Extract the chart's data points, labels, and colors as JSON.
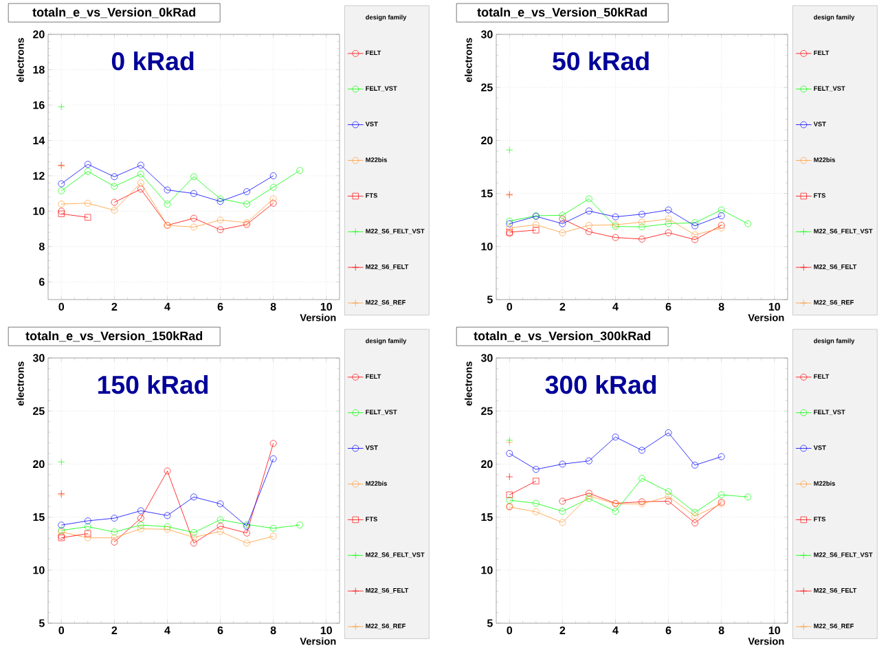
{
  "chart_data": [
    {
      "type": "line",
      "title": "totaln_e_vs_Version_0kRad",
      "annotations": [
        "0 kRad"
      ],
      "xlabel": "Version",
      "ylabel": "electrons",
      "legend_title": "design family",
      "legend": "right",
      "grid": true,
      "x": [
        0,
        1,
        2,
        3,
        4,
        5,
        6,
        7,
        8,
        9
      ],
      "xlim": [
        -0.5,
        10.5
      ],
      "xticks": [
        0,
        2,
        4,
        6,
        8,
        10
      ],
      "ylim": [
        5,
        20
      ],
      "yticks": [
        6,
        8,
        10,
        12,
        14,
        16,
        18,
        20
      ],
      "series": [
        {
          "name": "FELT",
          "color": "#ff0000",
          "marker": "circle",
          "values": [
            10.0,
            null,
            10.5,
            11.25,
            9.2,
            9.6,
            8.95,
            9.25,
            10.45,
            null
          ]
        },
        {
          "name": "FELT_VST",
          "color": "#00ff00",
          "marker": "circle",
          "values": [
            11.15,
            12.25,
            11.4,
            12.1,
            10.4,
            11.95,
            10.7,
            10.4,
            11.35,
            12.3
          ]
        },
        {
          "name": "VST",
          "color": "#0000ff",
          "marker": "circle",
          "values": [
            11.55,
            12.65,
            11.95,
            12.6,
            11.2,
            11.0,
            10.55,
            11.1,
            12.0,
            null
          ]
        },
        {
          "name": "M22bis",
          "color": "#ff9933",
          "marker": "circle",
          "values": [
            10.4,
            10.45,
            10.05,
            11.6,
            9.2,
            9.1,
            9.5,
            9.35,
            10.7,
            null
          ]
        },
        {
          "name": "FTS",
          "color": "#ff0000",
          "marker": "square",
          "values": [
            9.85,
            9.65,
            null,
            null,
            null,
            null,
            null,
            null,
            null,
            null
          ]
        },
        {
          "name": "M22_S6_FELT_VST",
          "color": "#00ff00",
          "marker": "cross",
          "values": [
            15.9,
            null,
            null,
            null,
            null,
            null,
            null,
            null,
            null,
            null
          ]
        },
        {
          "name": "M22_S6_FELT",
          "color": "#ff0000",
          "marker": "cross",
          "values": [
            12.6,
            null,
            null,
            null,
            null,
            null,
            null,
            null,
            null,
            null
          ]
        },
        {
          "name": "M22_S6_REF",
          "color": "#ff9933",
          "marker": "cross",
          "values": [
            12.55,
            null,
            null,
            null,
            null,
            null,
            null,
            null,
            null,
            null
          ]
        }
      ]
    },
    {
      "type": "line",
      "title": "totaln_e_vs_Version_50kRad",
      "annotations": [
        "50 kRad"
      ],
      "xlabel": "Version",
      "ylabel": "electrons",
      "legend_title": "design family",
      "legend": "right",
      "grid": true,
      "x": [
        0,
        1,
        2,
        3,
        4,
        5,
        6,
        7,
        8,
        9
      ],
      "xlim": [
        -0.5,
        10.5
      ],
      "xticks": [
        0,
        2,
        4,
        6,
        8,
        10
      ],
      "ylim": [
        5,
        30
      ],
      "yticks": [
        5,
        10,
        15,
        20,
        25,
        30
      ],
      "series": [
        {
          "name": "FELT",
          "color": "#ff0000",
          "marker": "circle",
          "values": [
            11.25,
            null,
            12.6,
            11.4,
            10.85,
            10.7,
            11.3,
            10.65,
            12.0,
            null
          ]
        },
        {
          "name": "FELT_VST",
          "color": "#00ff00",
          "marker": "circle",
          "values": [
            12.4,
            12.9,
            12.95,
            14.5,
            11.9,
            11.85,
            12.15,
            12.25,
            13.45,
            12.15
          ]
        },
        {
          "name": "VST",
          "color": "#0000ff",
          "marker": "circle",
          "values": [
            12.15,
            12.85,
            12.15,
            13.35,
            12.8,
            13.05,
            13.45,
            11.95,
            12.9,
            null
          ]
        },
        {
          "name": "M22bis",
          "color": "#ff9933",
          "marker": "circle",
          "values": [
            11.75,
            12.05,
            11.3,
            12.0,
            12.05,
            12.3,
            12.6,
            11.1,
            11.75,
            null
          ]
        },
        {
          "name": "FTS",
          "color": "#ff0000",
          "marker": "square",
          "values": [
            11.35,
            11.55,
            null,
            null,
            null,
            null,
            null,
            null,
            null,
            null
          ]
        },
        {
          "name": "M22_S6_FELT_VST",
          "color": "#00ff00",
          "marker": "cross",
          "values": [
            19.1,
            null,
            null,
            null,
            null,
            null,
            null,
            null,
            null,
            null
          ]
        },
        {
          "name": "M22_S6_FELT",
          "color": "#ff0000",
          "marker": "cross",
          "values": [
            14.9,
            null,
            null,
            null,
            null,
            null,
            null,
            null,
            null,
            null
          ]
        },
        {
          "name": "M22_S6_REF",
          "color": "#ff9933",
          "marker": "cross",
          "values": [
            14.85,
            null,
            null,
            null,
            null,
            null,
            null,
            null,
            null,
            null
          ]
        }
      ]
    },
    {
      "type": "line",
      "title": "totaln_e_vs_Version_150kRad",
      "annotations": [
        "150 kRad"
      ],
      "xlabel": "Version",
      "ylabel": "electrons",
      "legend_title": "design family",
      "legend": "right",
      "grid": true,
      "x": [
        0,
        1,
        2,
        3,
        4,
        5,
        6,
        7,
        8,
        9
      ],
      "xlim": [
        -0.5,
        10.5
      ],
      "xticks": [
        0,
        2,
        4,
        6,
        8,
        10
      ],
      "ylim": [
        5,
        30
      ],
      "yticks": [
        5,
        10,
        15,
        20,
        25,
        30
      ],
      "series": [
        {
          "name": "FELT",
          "color": "#ff0000",
          "marker": "circle",
          "values": [
            13.2,
            null,
            12.65,
            14.9,
            19.35,
            12.55,
            14.15,
            13.5,
            21.95,
            null
          ]
        },
        {
          "name": "FELT_VST",
          "color": "#00ff00",
          "marker": "circle",
          "values": [
            13.75,
            14.1,
            13.6,
            14.25,
            14.1,
            13.55,
            14.75,
            14.3,
            13.95,
            14.25
          ]
        },
        {
          "name": "VST",
          "color": "#0000ff",
          "marker": "circle",
          "values": [
            14.25,
            14.65,
            14.9,
            15.6,
            15.15,
            16.9,
            16.25,
            14.15,
            20.5,
            null
          ]
        },
        {
          "name": "M22bis",
          "color": "#ff9933",
          "marker": "circle",
          "values": [
            13.6,
            13.05,
            13.05,
            13.9,
            13.85,
            13.1,
            13.65,
            12.55,
            13.2,
            null
          ]
        },
        {
          "name": "FTS",
          "color": "#ff0000",
          "marker": "square",
          "values": [
            13.05,
            13.45,
            null,
            null,
            null,
            null,
            null,
            null,
            null,
            null
          ]
        },
        {
          "name": "M22_S6_FELT_VST",
          "color": "#00ff00",
          "marker": "cross",
          "values": [
            20.2,
            null,
            null,
            null,
            null,
            null,
            null,
            null,
            null,
            null
          ]
        },
        {
          "name": "M22_S6_FELT",
          "color": "#ff0000",
          "marker": "cross",
          "values": [
            17.2,
            null,
            null,
            null,
            null,
            null,
            null,
            null,
            null,
            null
          ]
        },
        {
          "name": "M22_S6_REF",
          "color": "#ff9933",
          "marker": "cross",
          "values": [
            17.1,
            null,
            null,
            null,
            null,
            null,
            null,
            null,
            null,
            null
          ]
        }
      ]
    },
    {
      "type": "line",
      "title": "totaln_e_vs_Version_300kRad",
      "annotations": [
        "300 kRad"
      ],
      "xlabel": "Version",
      "ylabel": "electrons",
      "legend_title": "design family",
      "legend": "right",
      "grid": true,
      "x": [
        0,
        1,
        2,
        3,
        4,
        5,
        6,
        7,
        8,
        9
      ],
      "xlim": [
        -0.5,
        10.5
      ],
      "xticks": [
        0,
        2,
        4,
        6,
        8,
        10
      ],
      "ylim": [
        5,
        30
      ],
      "yticks": [
        5,
        10,
        15,
        20,
        25,
        30
      ],
      "series": [
        {
          "name": "FELT",
          "color": "#ff0000",
          "marker": "circle",
          "values": [
            16.0,
            null,
            16.5,
            17.25,
            16.3,
            16.45,
            16.5,
            14.45,
            16.4,
            null
          ]
        },
        {
          "name": "FELT_VST",
          "color": "#00ff00",
          "marker": "circle",
          "values": [
            16.6,
            16.3,
            15.55,
            16.75,
            15.55,
            18.65,
            17.4,
            15.45,
            17.1,
            16.9
          ]
        },
        {
          "name": "VST",
          "color": "#0000ff",
          "marker": "circle",
          "values": [
            21.0,
            19.5,
            20.0,
            20.3,
            22.55,
            21.3,
            22.95,
            19.9,
            20.7,
            null
          ]
        },
        {
          "name": "M22bis",
          "color": "#ff9933",
          "marker": "circle",
          "values": [
            15.95,
            15.5,
            14.5,
            17.0,
            16.25,
            16.25,
            16.95,
            15.1,
            16.25,
            null
          ]
        },
        {
          "name": "FTS",
          "color": "#ff0000",
          "marker": "square",
          "values": [
            17.1,
            18.4,
            null,
            null,
            null,
            null,
            null,
            null,
            null,
            null
          ]
        },
        {
          "name": "M22_S6_FELT_VST",
          "color": "#00ff00",
          "marker": "cross",
          "values": [
            22.25,
            null,
            null,
            null,
            null,
            null,
            null,
            null,
            null,
            null
          ]
        },
        {
          "name": "M22_S6_FELT",
          "color": "#ff0000",
          "marker": "cross",
          "values": [
            18.8,
            null,
            null,
            null,
            null,
            null,
            null,
            null,
            null,
            null
          ]
        },
        {
          "name": "M22_S6_REF",
          "color": "#ff9933",
          "marker": "cross",
          "values": [
            22.05,
            null,
            null,
            null,
            null,
            null,
            null,
            null,
            null,
            null
          ]
        }
      ]
    }
  ]
}
